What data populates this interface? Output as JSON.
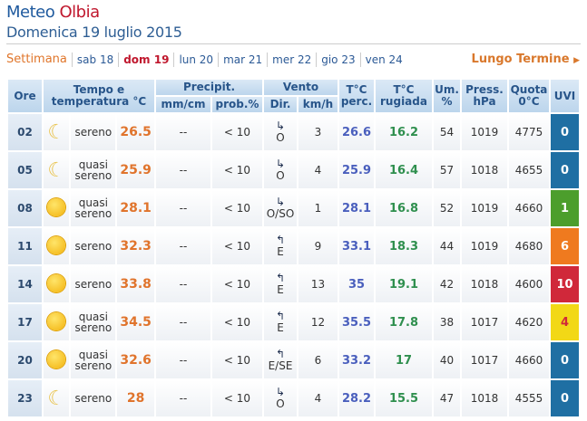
{
  "title": {
    "prefix": "Meteo",
    "city": "Olbia"
  },
  "date": "Domenica 19 luglio 2015",
  "nav": {
    "label": "Settimana",
    "days": [
      "sab 18",
      "dom 19",
      "lun 20",
      "mar 21",
      "mer 22",
      "gio 23",
      "ven 24"
    ],
    "active": "dom 19",
    "long_term": "Lungo Termine"
  },
  "headers": {
    "ore": "Ore",
    "tempo": "Tempo e temperatura °C",
    "precip": "Precipit.",
    "mm": "mm/cm",
    "prob": "prob.%",
    "vento": "Vento",
    "dir": "Dir.",
    "kmh": "km/h",
    "perc": "T°C perc.",
    "rug": "T°C rugiada",
    "um": "Um. %",
    "press": "Press. hPa",
    "quota": "Quota 0°C",
    "uvi": "UVI"
  },
  "rows": [
    {
      "ore": "02",
      "icon": "moon-icon",
      "desc": "sereno",
      "temp": "26.5",
      "mm": "--",
      "prob": "< 10",
      "arrow": "↳",
      "dir": "O",
      "kmh": "3",
      "perc": "26.6",
      "rug": "16.2",
      "um": "54",
      "press": "1019",
      "quota": "4775",
      "uvi": "0",
      "uvi_color": "#1f6fa3"
    },
    {
      "ore": "05",
      "icon": "moon-icon",
      "desc": "quasi sereno",
      "temp": "25.9",
      "mm": "--",
      "prob": "< 10",
      "arrow": "↳",
      "dir": "O",
      "kmh": "4",
      "perc": "25.9",
      "rug": "16.4",
      "um": "57",
      "press": "1018",
      "quota": "4655",
      "uvi": "0",
      "uvi_color": "#1f6fa3"
    },
    {
      "ore": "08",
      "icon": "sun-icon",
      "desc": "quasi sereno",
      "temp": "28.1",
      "mm": "--",
      "prob": "< 10",
      "arrow": "↳",
      "dir": "O/SO",
      "kmh": "1",
      "perc": "28.1",
      "rug": "16.8",
      "um": "52",
      "press": "1019",
      "quota": "4660",
      "uvi": "1",
      "uvi_color": "#4c9e2c"
    },
    {
      "ore": "11",
      "icon": "sun-icon",
      "desc": "sereno",
      "temp": "32.3",
      "mm": "--",
      "prob": "< 10",
      "arrow": "↰",
      "dir": "E",
      "kmh": "9",
      "perc": "33.1",
      "rug": "18.3",
      "um": "44",
      "press": "1019",
      "quota": "4680",
      "uvi": "6",
      "uvi_color": "#ef7a1f"
    },
    {
      "ore": "14",
      "icon": "sun-icon",
      "desc": "sereno",
      "temp": "33.8",
      "mm": "--",
      "prob": "< 10",
      "arrow": "↰",
      "dir": "E",
      "kmh": "13",
      "perc": "35",
      "rug": "19.1",
      "um": "42",
      "press": "1018",
      "quota": "4600",
      "uvi": "10",
      "uvi_color": "#d0283a"
    },
    {
      "ore": "17",
      "icon": "sun-icon",
      "desc": "quasi sereno",
      "temp": "34.5",
      "mm": "--",
      "prob": "< 10",
      "arrow": "↰",
      "dir": "E",
      "kmh": "12",
      "perc": "35.5",
      "rug": "17.8",
      "um": "38",
      "press": "1017",
      "quota": "4620",
      "uvi": "4",
      "uvi_color": "#f2d816"
    },
    {
      "ore": "20",
      "icon": "sun-icon",
      "desc": "quasi sereno",
      "temp": "32.6",
      "mm": "--",
      "prob": "< 10",
      "arrow": "↰",
      "dir": "E/SE",
      "kmh": "6",
      "perc": "33.2",
      "rug": "17",
      "um": "40",
      "press": "1017",
      "quota": "4660",
      "uvi": "0",
      "uvi_color": "#1f6fa3"
    },
    {
      "ore": "23",
      "icon": "moon-icon",
      "desc": "sereno",
      "temp": "28",
      "mm": "--",
      "prob": "< 10",
      "arrow": "↳",
      "dir": "O",
      "kmh": "4",
      "perc": "28.2",
      "rug": "15.5",
      "um": "47",
      "press": "1018",
      "quota": "4555",
      "uvi": "0",
      "uvi_color": "#1f6fa3"
    }
  ]
}
